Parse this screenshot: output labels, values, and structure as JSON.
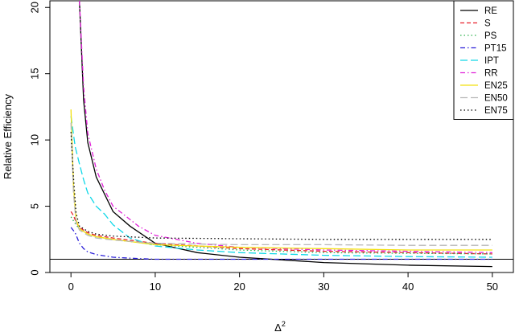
{
  "chart_data": {
    "type": "line",
    "title": "",
    "xlabel": "Δ",
    "xlabel_superscript": "2",
    "ylabel": "Relative Efficiency",
    "xlim": [
      -2.5,
      52.5
    ],
    "ylim": [
      0,
      20.5
    ],
    "xticks": [
      0,
      10,
      20,
      30,
      40,
      50
    ],
    "yticks": [
      0,
      5,
      10,
      15,
      20
    ],
    "grid": false,
    "legend_position": "top-right",
    "reference_line": 1,
    "series": [
      {
        "name": "RE",
        "color": "#000000",
        "dash": "solid",
        "x": [
          1,
          1.5,
          2,
          3,
          5,
          7,
          10,
          15,
          20,
          30,
          40,
          50
        ],
        "y": [
          20.5,
          13,
          9.8,
          7.2,
          4.6,
          3.5,
          2.2,
          1.5,
          1.15,
          0.75,
          0.55,
          0.45
        ]
      },
      {
        "name": "S",
        "color": "#e8202a",
        "dash": "dashed",
        "x": [
          0,
          0.3,
          0.6,
          1,
          2,
          3,
          5,
          10,
          20,
          30,
          40,
          50
        ],
        "y": [
          4.6,
          4.3,
          3.8,
          3.4,
          3.0,
          2.8,
          2.6,
          2.2,
          1.8,
          1.6,
          1.5,
          1.4
        ]
      },
      {
        "name": "PS",
        "color": "#2ab04a",
        "dash": "dotted",
        "x": [
          0,
          0.3,
          0.6,
          1,
          2,
          3,
          5,
          10,
          20,
          30,
          40,
          50
        ],
        "y": [
          4.2,
          3.9,
          3.6,
          3.3,
          2.9,
          2.7,
          2.5,
          2.1,
          1.7,
          1.5,
          1.45,
          1.4
        ]
      },
      {
        "name": "PT15",
        "color": "#2a1ed8",
        "dash": "dashdot",
        "x": [
          0,
          0.5,
          1,
          1.5,
          2,
          3,
          5,
          8,
          10,
          15,
          20,
          30,
          40,
          50
        ],
        "y": [
          3.4,
          3.0,
          2.2,
          1.8,
          1.55,
          1.35,
          1.15,
          1.05,
          1.0,
          1.0,
          1.0,
          1.0,
          1.0,
          1.0
        ]
      },
      {
        "name": "IPT",
        "color": "#10d8e8",
        "dash": "longdash",
        "x": [
          0,
          0.5,
          1,
          1.5,
          2,
          3,
          4,
          5,
          7,
          10,
          15,
          20,
          30,
          40,
          50
        ],
        "y": [
          11.8,
          9.5,
          8.2,
          7.0,
          6.0,
          5.0,
          4.4,
          3.6,
          2.6,
          2.0,
          1.7,
          1.5,
          1.3,
          1.2,
          1.15
        ]
      },
      {
        "name": "RR",
        "color": "#e020d8",
        "dash": "dashdot",
        "x": [
          1,
          1.5,
          2,
          3,
          4,
          5,
          6,
          7,
          8,
          10,
          15,
          20,
          30,
          40,
          50
        ],
        "y": [
          20.5,
          14,
          10.5,
          7.8,
          6.2,
          5.0,
          4.5,
          4.0,
          3.5,
          2.8,
          2.2,
          1.9,
          1.7,
          1.6,
          1.5
        ]
      },
      {
        "name": "EN25",
        "color": "#f2e010",
        "dash": "solid",
        "x": [
          0,
          0.3,
          0.6,
          1,
          2,
          3,
          5,
          10,
          20,
          30,
          40,
          50
        ],
        "y": [
          12.3,
          6.5,
          4.0,
          3.3,
          2.9,
          2.7,
          2.5,
          2.1,
          1.9,
          1.8,
          1.7,
          1.7
        ]
      },
      {
        "name": "EN50",
        "color": "#b8b8b8",
        "dash": "longdash",
        "x": [
          0,
          0.3,
          0.6,
          1,
          2,
          3,
          5,
          10,
          20,
          30,
          40,
          50
        ],
        "y": [
          11.3,
          6.0,
          3.8,
          3.2,
          2.8,
          2.6,
          2.45,
          2.2,
          2.1,
          2.1,
          2.05,
          2.05
        ]
      },
      {
        "name": "EN75",
        "color": "#000000",
        "dash": "dotted",
        "x": [
          0,
          0.3,
          0.6,
          1,
          2,
          3,
          5,
          10,
          20,
          30,
          40,
          50
        ],
        "y": [
          10.6,
          7.2,
          4.5,
          3.5,
          3.1,
          2.9,
          2.75,
          2.6,
          2.55,
          2.5,
          2.5,
          2.5
        ]
      }
    ]
  }
}
